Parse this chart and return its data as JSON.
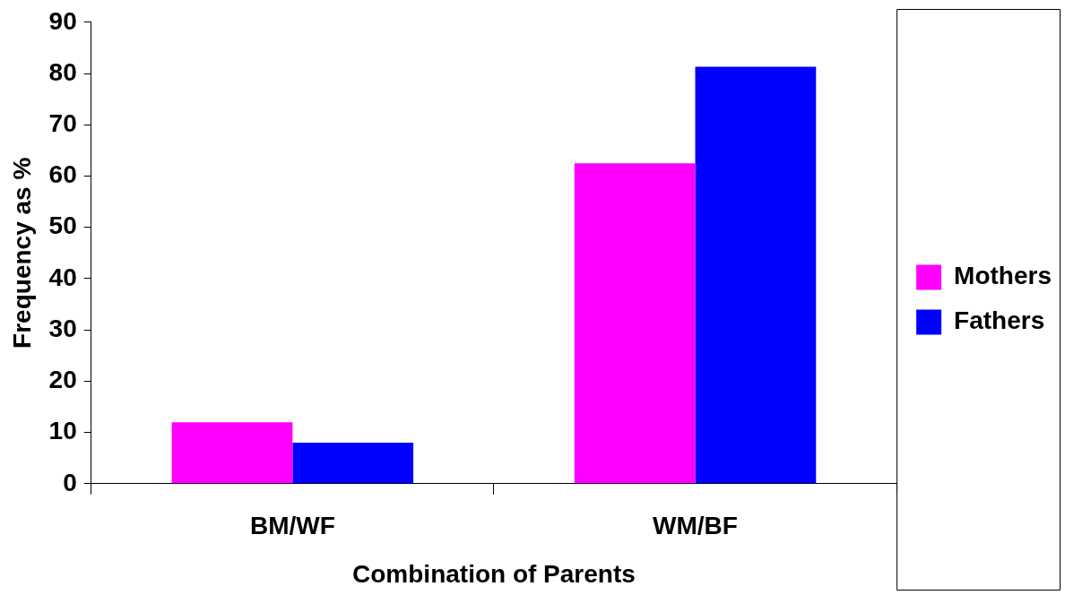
{
  "chart_data": {
    "type": "bar",
    "xlabel": "Combination of Parents",
    "ylabel": "Frequency as %",
    "categories": [
      "BM/WF",
      "WM/BF"
    ],
    "series": [
      {
        "name": "Mothers",
        "color": "#ff00ff",
        "values": [
          12,
          62.5
        ]
      },
      {
        "name": "Fathers",
        "color": "#0000ff",
        "values": [
          8,
          81.3
        ]
      }
    ],
    "ylim": [
      0,
      90
    ],
    "yticks": [
      0,
      10,
      20,
      30,
      40,
      50,
      60,
      70,
      80,
      90
    ],
    "grid": false,
    "legend": "right"
  }
}
